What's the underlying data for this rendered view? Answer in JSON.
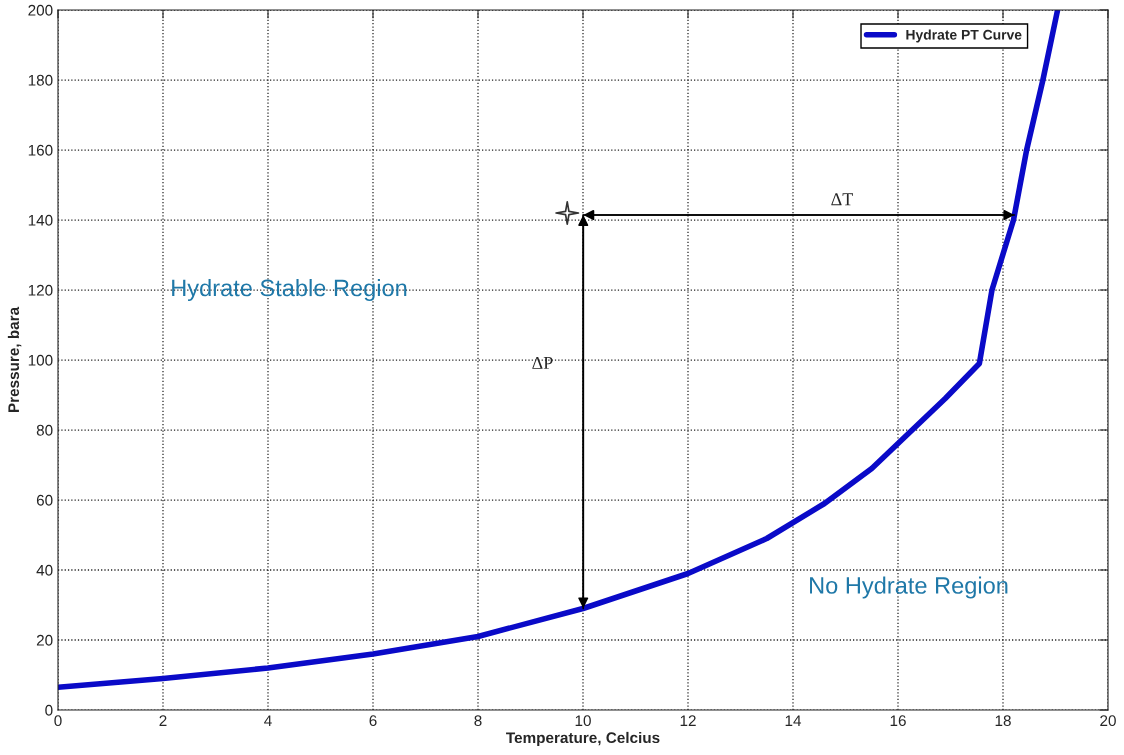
{
  "chart_data": {
    "type": "line",
    "xlabel": "Temperature, Celcius",
    "ylabel": "Pressure, bara",
    "xlim": [
      0,
      20
    ],
    "xticks": [
      0,
      2,
      4,
      6,
      8,
      10,
      12,
      14,
      16,
      18,
      20
    ],
    "ylim": [
      0,
      200
    ],
    "yticks": [
      0,
      20,
      40,
      60,
      80,
      100,
      120,
      140,
      160,
      180,
      200
    ],
    "grid": true,
    "legend": "top right",
    "line_style": "solid",
    "series": [
      {
        "name": "Hydrate PT Curve",
        "color": "#0a0ac8",
        "x": [
          0,
          2,
          4,
          6,
          8,
          10,
          12,
          13.5,
          14.6,
          15.5,
          16.2,
          16.9,
          17.55,
          17.79,
          18.2,
          18.45,
          18.76,
          19.04
        ],
        "values": [
          6.5,
          9,
          12,
          16,
          21,
          29,
          39,
          49,
          59,
          69,
          79,
          89,
          99,
          120,
          140,
          160,
          180,
          200
        ]
      },
      {
        "type": "scatter",
        "marker": "star",
        "color": "#333333",
        "x": [
          9.7
        ],
        "values": [
          142
        ]
      }
    ],
    "annotations": [
      "ΔP",
      "ΔT",
      "Hydrate Stable Region",
      "No Hydrate Region"
    ]
  }
}
